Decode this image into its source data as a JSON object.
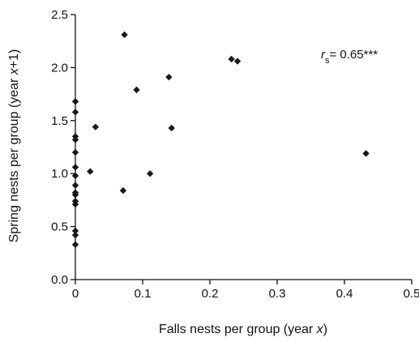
{
  "chart_data": {
    "type": "scatter",
    "title": "",
    "xlabel_prefix": "Falls nests per group (year ",
    "xlabel_var": "x",
    "xlabel_suffix": ")",
    "ylabel_prefix": "Spring nests per group (year ",
    "ylabel_var": "x",
    "ylabel_suffix": "+1)",
    "xlim": [
      0,
      0.5
    ],
    "ylim": [
      0,
      2.5
    ],
    "x_ticks": [
      0,
      0.1,
      0.2,
      0.3,
      0.4,
      0.5
    ],
    "x_tick_labels": [
      "0",
      "0.1",
      "0.2",
      "0.3",
      "0.4",
      "0.5"
    ],
    "y_ticks": [
      0,
      0.5,
      1.0,
      1.5,
      2.0,
      2.5
    ],
    "y_tick_labels": [
      "0.0",
      "0.5",
      "1.0",
      "1.5",
      "2.0",
      "2.5"
    ],
    "grid": false,
    "marker": "diamond",
    "marker_color": "#1a1a1a",
    "points": [
      {
        "x": 0.0,
        "y": 1.68
      },
      {
        "x": 0.0,
        "y": 1.58
      },
      {
        "x": 0.0,
        "y": 1.35
      },
      {
        "x": 0.0,
        "y": 1.32
      },
      {
        "x": 0.0,
        "y": 1.2
      },
      {
        "x": 0.0,
        "y": 1.06
      },
      {
        "x": 0.0,
        "y": 0.98
      },
      {
        "x": 0.0,
        "y": 0.89
      },
      {
        "x": 0.0,
        "y": 0.82
      },
      {
        "x": 0.0,
        "y": 0.8
      },
      {
        "x": 0.0,
        "y": 0.74
      },
      {
        "x": 0.0,
        "y": 0.71
      },
      {
        "x": 0.0,
        "y": 0.46
      },
      {
        "x": 0.0,
        "y": 0.42
      },
      {
        "x": 0.0,
        "y": 0.33
      },
      {
        "x": 0.022,
        "y": 1.02
      },
      {
        "x": 0.03,
        "y": 1.44
      },
      {
        "x": 0.071,
        "y": 0.84
      },
      {
        "x": 0.073,
        "y": 2.31
      },
      {
        "x": 0.091,
        "y": 1.79
      },
      {
        "x": 0.111,
        "y": 1.0
      },
      {
        "x": 0.139,
        "y": 1.91
      },
      {
        "x": 0.143,
        "y": 1.43
      },
      {
        "x": 0.232,
        "y": 2.08
      },
      {
        "x": 0.241,
        "y": 2.06
      },
      {
        "x": 0.432,
        "y": 1.19
      }
    ],
    "annotation": {
      "var": "r",
      "sub": "s",
      "text": "= 0.65***"
    }
  }
}
